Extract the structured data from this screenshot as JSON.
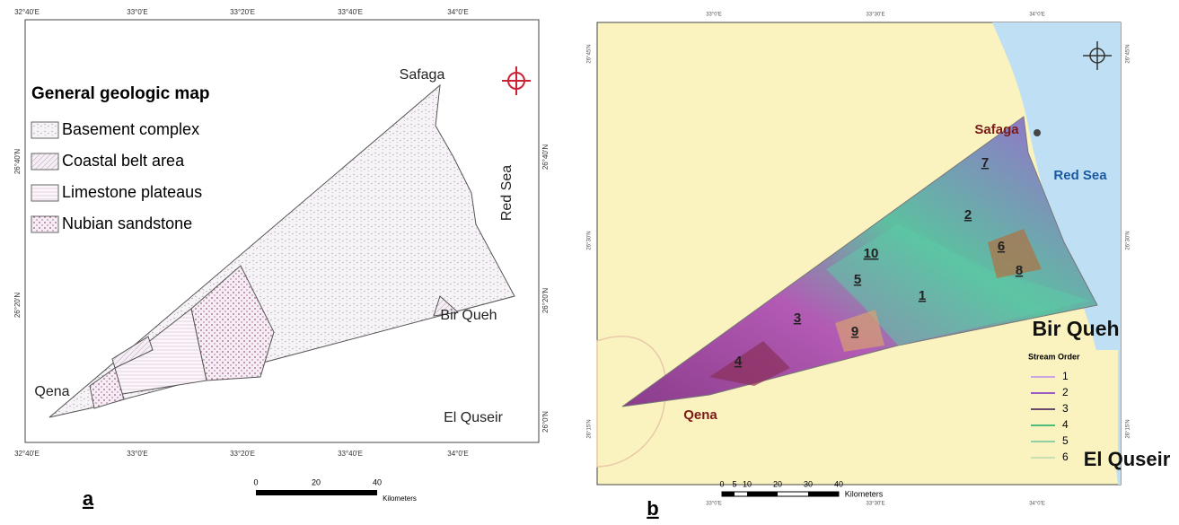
{
  "panel_a": {
    "label": "a",
    "top_ticks": [
      "32°40'E",
      "33°0'E",
      "33°20'E",
      "33°40'E",
      "34°0'E"
    ],
    "bottom_ticks": [
      "32°40'E",
      "33°0'E",
      "33°20'E",
      "33°40'E",
      "34°0'E"
    ],
    "left_ticks": [
      "26°40'N",
      "26°20'N"
    ],
    "right_ticks": [
      "26°40'N",
      "26°20'N",
      "26°0'N"
    ],
    "legend": {
      "title": "General geologic map",
      "items": [
        "Basement complex",
        "Coastal belt area",
        "Limestone plateaus",
        "Nubian sandstone"
      ]
    },
    "places": [
      "Safaga",
      "Red Sea",
      "Bir Queh",
      "Qena",
      "El Quseir"
    ],
    "scale": {
      "ticks": [
        "0",
        "20",
        "40"
      ],
      "unit": "Kilometers"
    }
  },
  "panel_b": {
    "label": "b",
    "top_ticks": [
      "33°0'E",
      "33°30'E",
      "34°0'E"
    ],
    "bottom_ticks": [
      "33°0'E",
      "33°30'E",
      "34°0'E"
    ],
    "left_ticks": [
      "26°45'N",
      "26°30'N",
      "26°15'N"
    ],
    "right_ticks": [
      "26°45'N",
      "26°30'N",
      "26°15'N"
    ],
    "places": [
      "Safaga",
      "Red Sea",
      "Bir Queh",
      "Qena",
      "El Quseir"
    ],
    "basins": [
      "7",
      "2",
      "10",
      "6",
      "8",
      "5",
      "1",
      "3",
      "9",
      "4"
    ],
    "legend": {
      "title": "Stream Order",
      "items": [
        "1",
        "2",
        "3",
        "4",
        "5",
        "6"
      ]
    },
    "scale": {
      "ticks": [
        "0",
        "5",
        "10",
        "20",
        "30",
        "40"
      ],
      "unit": "Kilometers"
    }
  }
}
